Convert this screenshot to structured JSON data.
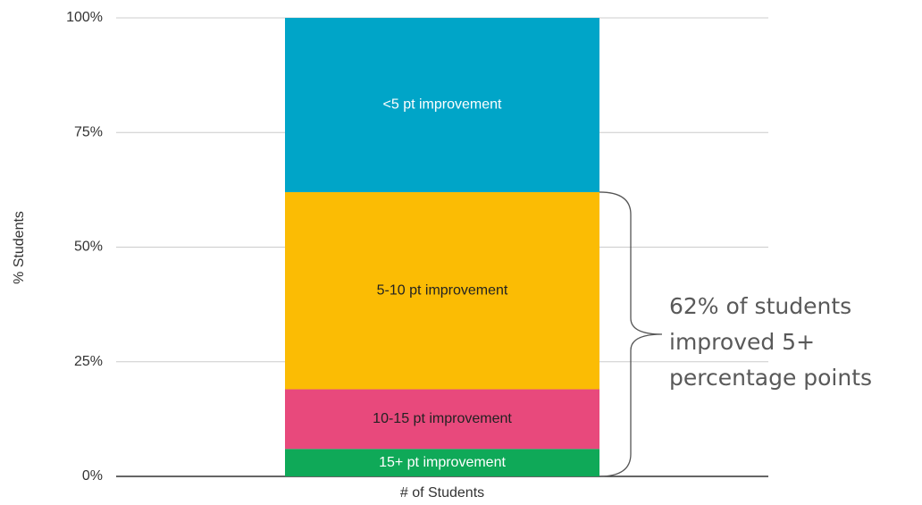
{
  "chart_data": {
    "type": "stacked_bar",
    "categories": [
      "# of Students"
    ],
    "series": [
      {
        "name": "15+ pt improvement",
        "color": "#0fa958",
        "label_color": "#ffffff",
        "values": [
          6
        ]
      },
      {
        "name": "10-15 pt improvement",
        "color": "#e8497c",
        "label_color": "#222222",
        "values": [
          13
        ]
      },
      {
        "name": "5-10 pt improvement",
        "color": "#fbbc04",
        "label_color": "#222222",
        "values": [
          43
        ]
      },
      {
        "name": "<5 pt improvement",
        "color": "#00a5c8",
        "label_color": "#ffffff",
        "values": [
          38
        ]
      }
    ],
    "ylabel": "% Students",
    "ylim": [
      0,
      100
    ],
    "yticks": [
      {
        "value": 0,
        "label": "0%"
      },
      {
        "value": 25,
        "label": "25%"
      },
      {
        "value": 50,
        "label": "50%"
      },
      {
        "value": 75,
        "label": "75%"
      },
      {
        "value": 100,
        "label": "100%"
      }
    ],
    "grid": true,
    "annotation": [
      "62% of students",
      "improved 5+",
      "percentage points"
    ]
  }
}
